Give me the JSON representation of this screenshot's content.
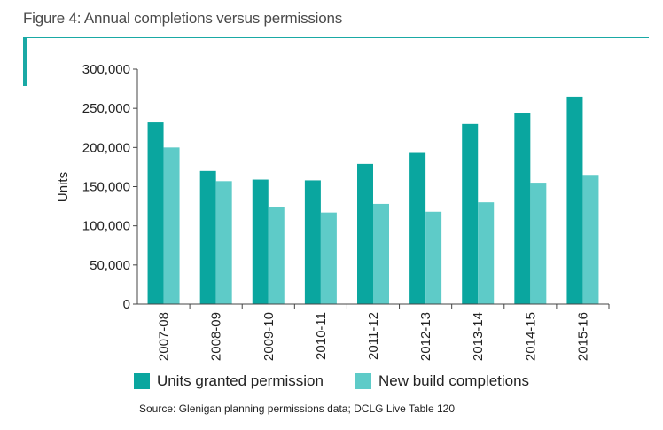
{
  "figure": {
    "title": "Figure 4: Annual completions versus permissions",
    "source": "Source: Glenigan planning permissions data; DCLG Live Table 120"
  },
  "chart_data": {
    "type": "bar",
    "categories": [
      "2007-08",
      "2008-09",
      "2009-10",
      "2010-11",
      "2011-12",
      "2012-13",
      "2013-14",
      "2014-15",
      "2015-16"
    ],
    "series": [
      {
        "name": "Units granted permission",
        "color": "#0aa69f",
        "values": [
          232000,
          170000,
          159000,
          158000,
          179000,
          193000,
          230000,
          244000,
          265000
        ]
      },
      {
        "name": "New build completions",
        "color": "#5ecbc8",
        "values": [
          200000,
          157000,
          124000,
          117000,
          128000,
          118000,
          130000,
          155000,
          165000
        ]
      }
    ],
    "ylabel": "Units",
    "xlabel": "",
    "ylim": [
      0,
      300000
    ],
    "yticks": [
      0,
      50000,
      100000,
      150000,
      200000,
      250000,
      300000
    ],
    "ytick_labels": [
      "0",
      "50,000",
      "100,000",
      "150,000",
      "200,000",
      "250,000",
      "300,000"
    ],
    "grid": false,
    "legend": "bottom"
  }
}
